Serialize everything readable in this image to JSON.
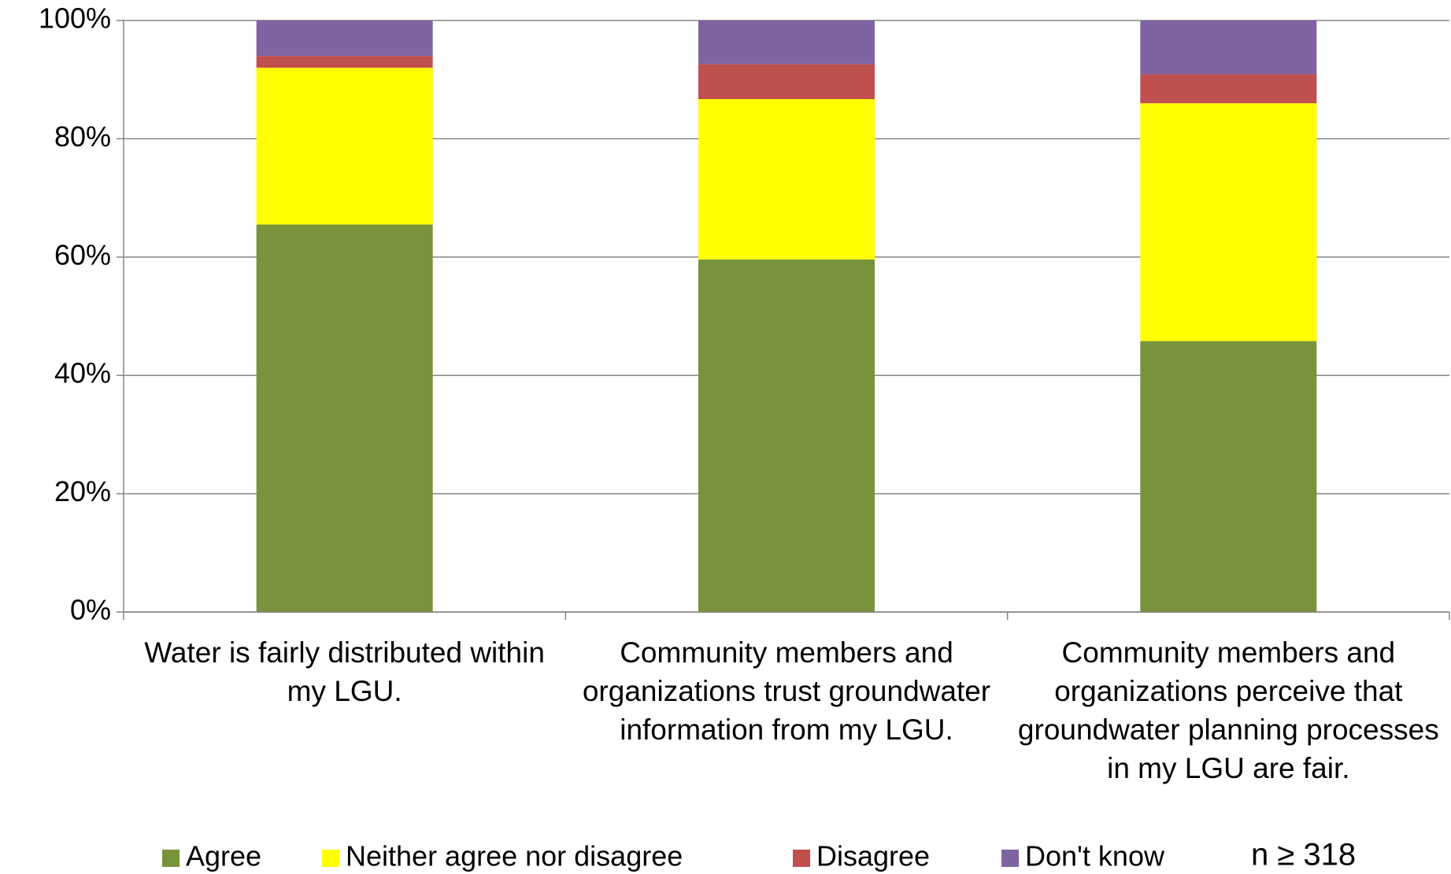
{
  "chart_data": {
    "type": "stacked_bar",
    "categories": [
      "Water is fairly distributed within my LGU.",
      "Community members and organizations trust groundwater information from my LGU.",
      "Community members and organizations perceive that groundwater planning processes in my LGU are fair."
    ],
    "series": [
      {
        "name": "Agree",
        "color": "#77933c",
        "values": [
          65.5,
          59.6,
          45.8
        ]
      },
      {
        "name": "Neither agree nor disagree",
        "color": "#ffff00",
        "values": [
          26.5,
          27.1,
          40.2
        ]
      },
      {
        "name": "Disagree",
        "color": "#c0504d",
        "values": [
          2.0,
          5.9,
          4.9
        ]
      },
      {
        "name": "Don't know",
        "color": "#8064a2",
        "values": [
          6.0,
          7.4,
          9.1
        ]
      }
    ],
    "ylim": [
      0,
      100
    ],
    "yticks": [
      {
        "value": 0,
        "label": "0%"
      },
      {
        "value": 20,
        "label": "20%"
      },
      {
        "value": 40,
        "label": "40%"
      },
      {
        "value": 60,
        "label": "60%"
      },
      {
        "value": 80,
        "label": "80%"
      },
      {
        "value": 100,
        "label": "100%"
      }
    ],
    "grid": true,
    "legend": "bottom",
    "annotation": "n ≥ 318"
  }
}
